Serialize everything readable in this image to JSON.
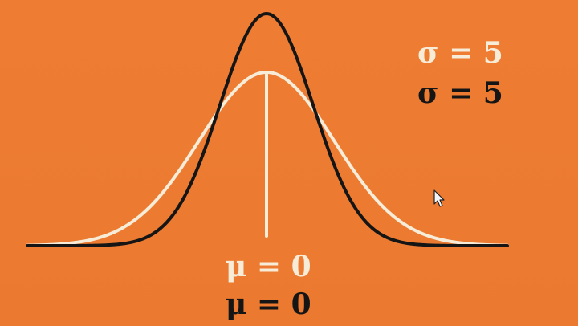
{
  "labels": {
    "sigma_white": "σ = 5",
    "sigma_black": "σ = 5",
    "mu_white": "μ = 0",
    "mu_black": "μ = 0"
  },
  "colors": {
    "background": "#ec7c32",
    "white_curve": "#f7ecd8",
    "black_curve": "#151515"
  },
  "icons": {
    "cursor": "mouse-pointer-icon"
  }
}
